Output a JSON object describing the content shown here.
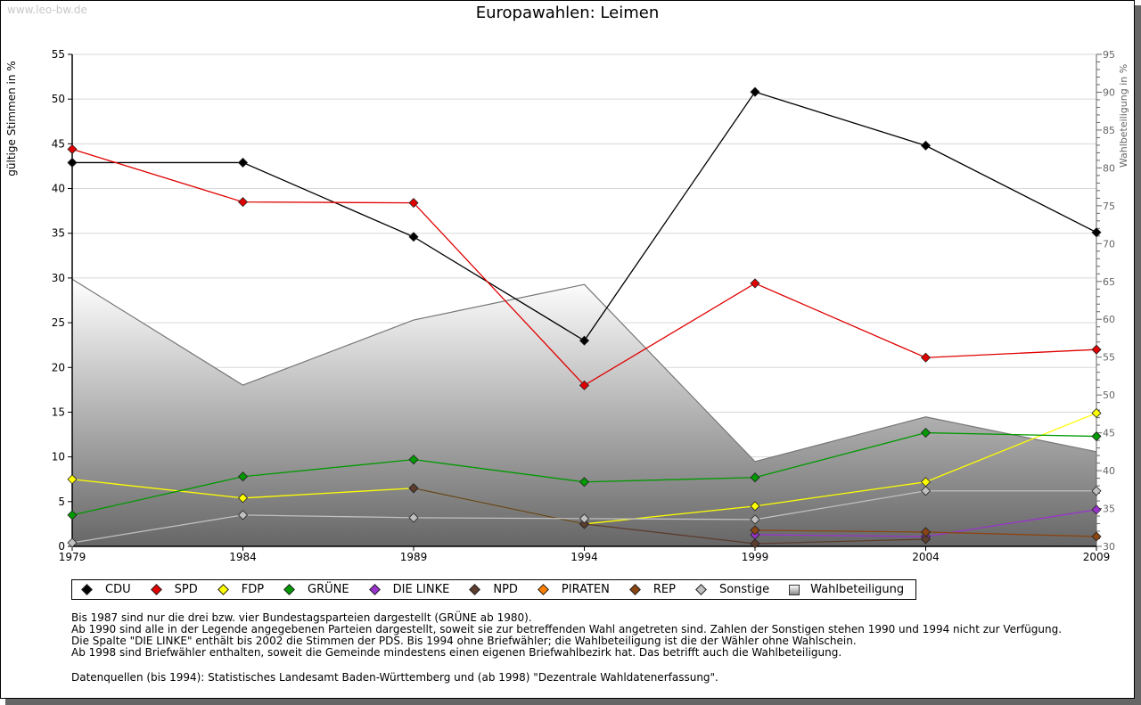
{
  "watermark": "www.leo-bw.de",
  "chart_data": {
    "type": "line",
    "title": "Europawahlen: Leimen",
    "xlabel": "",
    "ylabel": "gültige Stimmen in %",
    "y2label": "Wahlbeteiligung in %",
    "x": [
      1979,
      1984,
      1989,
      1994,
      1999,
      2004,
      2009
    ],
    "categories": [
      "1979",
      "1984",
      "1989",
      "1994",
      "1999",
      "2004",
      "2009"
    ],
    "ylim": [
      0,
      55
    ],
    "y2lim": [
      30,
      95
    ],
    "yticks": [
      "0",
      "5",
      "10",
      "15",
      "20",
      "25",
      "30",
      "35",
      "40",
      "45",
      "50",
      "55"
    ],
    "y2ticks": [
      "30",
      "35",
      "40",
      "45",
      "50",
      "55",
      "60",
      "65",
      "70",
      "75",
      "80",
      "85",
      "90",
      "95"
    ],
    "grid": true,
    "legend_position": "bottom",
    "series": [
      {
        "name": "CDU",
        "color": "#000000",
        "values": [
          42.9,
          42.9,
          34.6,
          23.0,
          50.8,
          44.8,
          35.1
        ]
      },
      {
        "name": "SPD",
        "color": "#e00000",
        "values": [
          44.4,
          38.5,
          38.4,
          18.0,
          29.4,
          21.1,
          22.0
        ]
      },
      {
        "name": "FDP",
        "color": "#ffff00",
        "values": [
          7.5,
          5.4,
          6.5,
          2.5,
          4.5,
          7.2,
          14.9
        ]
      },
      {
        "name": "GRÜNE",
        "color": "#009900",
        "values": [
          3.5,
          7.8,
          9.7,
          7.2,
          7.7,
          12.7,
          12.3
        ]
      },
      {
        "name": "DIE LINKE",
        "color": "#9933cc",
        "values": [
          null,
          null,
          null,
          null,
          1.3,
          1.1,
          4.1
        ]
      },
      {
        "name": "NPD",
        "color": "#5c3d2e",
        "values": [
          null,
          null,
          6.5,
          2.5,
          0.3,
          0.8,
          null
        ]
      },
      {
        "name": "PIRATEN",
        "color": "#ff8000",
        "values": [
          null,
          null,
          null,
          null,
          null,
          null,
          null
        ]
      },
      {
        "name": "REP",
        "color": "#8b4513",
        "values": [
          null,
          null,
          null,
          null,
          1.8,
          1.6,
          1.1
        ]
      },
      {
        "name": "Sonstige",
        "color": "#c0c0c0",
        "values": [
          0.4,
          3.5,
          3.2,
          3.1,
          3.0,
          6.2,
          6.2
        ]
      }
    ],
    "area_series": {
      "name": "Wahlbeteiligung",
      "axis": "right",
      "values": [
        65.3,
        51.3,
        59.9,
        64.6,
        41.2,
        47.1,
        42.5
      ]
    }
  },
  "legend": [
    {
      "label": "CDU",
      "color": "#000000",
      "kind": "diamond"
    },
    {
      "label": "SPD",
      "color": "#e00000",
      "kind": "diamond"
    },
    {
      "label": "FDP",
      "color": "#ffff00",
      "kind": "diamond"
    },
    {
      "label": "GRÜNE",
      "color": "#009900",
      "kind": "diamond"
    },
    {
      "label": "DIE LINKE",
      "color": "#9933cc",
      "kind": "diamond"
    },
    {
      "label": "NPD",
      "color": "#5c3d2e",
      "kind": "diamond"
    },
    {
      "label": "PIRATEN",
      "color": "#ff8000",
      "kind": "diamond"
    },
    {
      "label": "REP",
      "color": "#8b4513",
      "kind": "diamond"
    },
    {
      "label": "Sonstige",
      "color": "#c0c0c0",
      "kind": "diamond"
    },
    {
      "label": "Wahlbeteiligung",
      "color": "#999999",
      "kind": "square"
    }
  ],
  "notes": [
    "Bis 1987 sind nur die drei bzw. vier Bundestagsparteien dargestellt (GRÜNE ab 1980).",
    "Ab 1990 sind alle in der Legende angegebenen Parteien dargestellt, soweit sie zur betreffenden Wahl angetreten sind. Zahlen der Sonstigen stehen 1990 und 1994 nicht zur Verfügung.",
    "Die Spalte \"DIE LINKE\" enthält bis 2002 die Stimmen der PDS. Bis 1994 ohne Briefwähler; die Wahlbeteiligung ist die der Wähler ohne Wahlschein.",
    "Ab 1998 sind Briefwähler enthalten, soweit die Gemeinde mindestens einen eigenen Briefwahlbezirk hat. Das betrifft auch die Wahlbeteiligung."
  ],
  "source": "Datenquellen (bis 1994): Statistisches Landesamt Baden-Württemberg und (ab 1998) \"Dezentrale Wahldatenerfassung\"."
}
